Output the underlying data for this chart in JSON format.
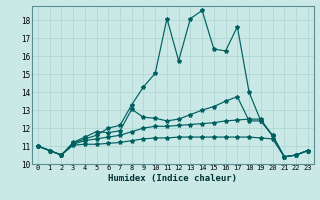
{
  "xlabel": "Humidex (Indice chaleur)",
  "xlim": [
    -0.5,
    23.5
  ],
  "ylim": [
    10.0,
    18.8
  ],
  "yticks": [
    10,
    11,
    12,
    13,
    14,
    15,
    16,
    17,
    18
  ],
  "xticks": [
    0,
    1,
    2,
    3,
    4,
    5,
    6,
    7,
    8,
    9,
    10,
    11,
    12,
    13,
    14,
    15,
    16,
    17,
    18,
    19,
    20,
    21,
    22,
    23
  ],
  "background_color": "#c9e8e6",
  "grid_color": "#b0d8d5",
  "line_color": "#006060",
  "line1": [
    11.0,
    10.75,
    10.5,
    11.2,
    11.5,
    11.8,
    11.75,
    11.85,
    13.05,
    12.6,
    12.55,
    12.4,
    12.5,
    12.75,
    13.0,
    13.2,
    13.5,
    13.75,
    12.4,
    12.4,
    11.6,
    10.4,
    10.5,
    10.75
  ],
  "line2": [
    11.0,
    10.75,
    10.5,
    11.1,
    11.3,
    11.4,
    11.5,
    11.6,
    11.8,
    12.0,
    12.1,
    12.1,
    12.15,
    12.2,
    12.25,
    12.3,
    12.4,
    12.45,
    12.5,
    12.5,
    11.55,
    10.4,
    10.5,
    10.75
  ],
  "line3": [
    11.0,
    10.75,
    10.5,
    11.05,
    11.1,
    11.1,
    11.15,
    11.2,
    11.3,
    11.4,
    11.45,
    11.45,
    11.5,
    11.5,
    11.5,
    11.5,
    11.5,
    11.5,
    11.5,
    11.45,
    11.4,
    10.4,
    10.5,
    10.75
  ],
  "line4": [
    11.0,
    10.75,
    10.5,
    11.15,
    11.4,
    11.6,
    12.0,
    12.15,
    13.3,
    14.3,
    15.05,
    18.1,
    15.75,
    18.1,
    18.55,
    16.4,
    16.3,
    17.65,
    14.0,
    12.4,
    11.6,
    10.4,
    10.5,
    10.75
  ]
}
